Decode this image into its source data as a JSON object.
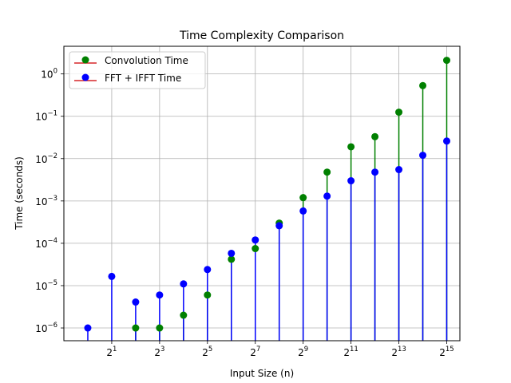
{
  "chart_data": {
    "type": "stem",
    "title": "Time Complexity Comparison",
    "xlabel": "Input Size (n)",
    "ylabel": "Time (seconds)",
    "x_scale": "log2",
    "y_scale": "log10",
    "xlim": [
      0.5,
      48000
    ],
    "ylim": [
      5e-07,
      4.5
    ],
    "grid": true,
    "legend_position": "top-left",
    "x": [
      1,
      2,
      4,
      8,
      16,
      32,
      64,
      128,
      256,
      512,
      1024,
      2048,
      4096,
      8192,
      16384,
      32768
    ],
    "x_ticks": [
      {
        "value": 2,
        "base": "2",
        "exp": "1"
      },
      {
        "value": 8,
        "base": "2",
        "exp": "3"
      },
      {
        "value": 32,
        "base": "2",
        "exp": "5"
      },
      {
        "value": 128,
        "base": "2",
        "exp": "7"
      },
      {
        "value": 512,
        "base": "2",
        "exp": "9"
      },
      {
        "value": 2048,
        "base": "2",
        "exp": "11"
      },
      {
        "value": 8192,
        "base": "2",
        "exp": "13"
      },
      {
        "value": 32768,
        "base": "2",
        "exp": "15"
      }
    ],
    "y_ticks": [
      {
        "value": 1e-06,
        "base": "10",
        "exp": "−6"
      },
      {
        "value": 1e-05,
        "base": "10",
        "exp": "−5"
      },
      {
        "value": 0.0001,
        "base": "10",
        "exp": "−4"
      },
      {
        "value": 0.001,
        "base": "10",
        "exp": "−3"
      },
      {
        "value": 0.01,
        "base": "10",
        "exp": "−2"
      },
      {
        "value": 0.1,
        "base": "10",
        "exp": "−1"
      },
      {
        "value": 1,
        "base": "10",
        "exp": "0"
      }
    ],
    "series": [
      {
        "name": "Convolution Time",
        "color": "#008000",
        "stem_color": "#008000",
        "baseline_color": "#d62728",
        "values": [
          null,
          null,
          1e-06,
          1e-06,
          2e-06,
          6e-06,
          4.2e-05,
          7.5e-05,
          0.0003,
          0.0012,
          0.0048,
          0.019,
          0.033,
          0.125,
          0.53,
          2.1
        ]
      },
      {
        "name": "FFT + IFFT Time",
        "color": "#0000ff",
        "stem_color": "#0000ff",
        "baseline_color": "#d62728",
        "values": [
          1e-06,
          1.65e-05,
          4.1e-06,
          6e-06,
          1.1e-05,
          2.4e-05,
          5.8e-05,
          0.00012,
          0.00026,
          0.00058,
          0.0013,
          0.003,
          0.0048,
          0.0055,
          0.012,
          0.026
        ]
      }
    ]
  }
}
